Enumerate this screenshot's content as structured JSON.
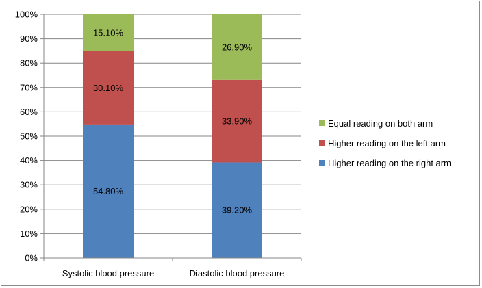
{
  "chart_data": {
    "type": "bar",
    "stacked": true,
    "percent": true,
    "categories": [
      "Systolic blood pressure",
      "Diastolic blood pressure"
    ],
    "series": [
      {
        "name": "Higher reading on the right arm",
        "values": [
          54.8,
          39.2
        ],
        "labels": [
          "54.80%",
          "39.20%"
        ],
        "color": "#4f81bd"
      },
      {
        "name": "Higher reading on the left arm",
        "values": [
          30.1,
          33.9
        ],
        "labels": [
          "30.10%",
          "33.90%"
        ],
        "color": "#c0504d"
      },
      {
        "name": "Equal reading on both arm",
        "values": [
          15.1,
          26.9
        ],
        "labels": [
          "15.10%",
          "26.90%"
        ],
        "color": "#9bbb59"
      }
    ],
    "legend_order": [
      "Equal reading on both arm",
      "Higher reading on the left arm",
      "Higher reading on the right arm"
    ],
    "ylim": [
      0,
      100
    ],
    "yticks": [
      "0%",
      "10%",
      "20%",
      "30%",
      "40%",
      "50%",
      "60%",
      "70%",
      "80%",
      "90%",
      "100%"
    ],
    "grid": true,
    "legend_position": "right"
  }
}
